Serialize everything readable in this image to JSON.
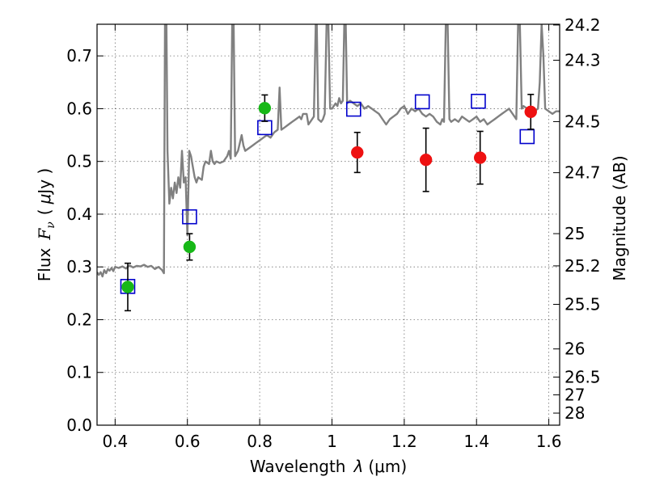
{
  "chart_data": {
    "type": "scatter",
    "xlabel_text": "Wavelength",
    "xlabel_symbol": "λ",
    "xlabel_unit": "(μm)",
    "ylabel_text": "Flux",
    "ylabel_symbol": "F",
    "ylabel_sub": "ν",
    "ylabel_unit_open": "(",
    "ylabel_unit_mu": "μ",
    "ylabel_unit_rest": "Jy )",
    "y2label": "Magnitude (AB)",
    "xlim": [
      0.35,
      1.63
    ],
    "ylim": [
      0.0,
      0.76
    ],
    "grid": true,
    "x_ticks": [
      0.4,
      0.6,
      0.8,
      1.0,
      1.2,
      1.4,
      1.6
    ],
    "x_tick_labels": [
      "0.4",
      "0.6",
      "0.8",
      "1",
      "1.2",
      "1.4",
      "1.6"
    ],
    "y_ticks": [
      0.0,
      0.1,
      0.2,
      0.3,
      0.4,
      0.5,
      0.6,
      0.7
    ],
    "y_tick_labels": [
      "0.0",
      "0.1",
      "0.2",
      "0.3",
      "0.4",
      "0.5",
      "0.6",
      "0.7"
    ],
    "mag_ticks": [
      24.2,
      24.3,
      24.5,
      24.7,
      25,
      25.2,
      25.5,
      26,
      26.5,
      27,
      28
    ],
    "mag_tick_labels": [
      "24.2",
      "24.3",
      "24.5",
      "24.7",
      "25",
      "25.2",
      "25.5",
      "26",
      "26.5",
      "27",
      "28"
    ],
    "colors": {
      "model": "#808080",
      "green": "#17b817",
      "red": "#ee1111",
      "square": "#0000cc",
      "errorbar": "#000000"
    },
    "series": [
      {
        "name": "model spectrum",
        "kind": "line",
        "points": [
          [
            0.35,
            0.29
          ],
          [
            0.355,
            0.285
          ],
          [
            0.36,
            0.29
          ],
          [
            0.365,
            0.282
          ],
          [
            0.37,
            0.294
          ],
          [
            0.375,
            0.288
          ],
          [
            0.38,
            0.296
          ],
          [
            0.385,
            0.293
          ],
          [
            0.39,
            0.298
          ],
          [
            0.395,
            0.292
          ],
          [
            0.4,
            0.3
          ],
          [
            0.41,
            0.298
          ],
          [
            0.42,
            0.301
          ],
          [
            0.43,
            0.297
          ],
          [
            0.44,
            0.303
          ],
          [
            0.45,
            0.299
          ],
          [
            0.46,
            0.302
          ],
          [
            0.47,
            0.301
          ],
          [
            0.48,
            0.304
          ],
          [
            0.49,
            0.3
          ],
          [
            0.5,
            0.302
          ],
          [
            0.51,
            0.296
          ],
          [
            0.52,
            0.3
          ],
          [
            0.53,
            0.294
          ],
          [
            0.535,
            0.288
          ],
          [
            0.538,
            0.76
          ],
          [
            0.542,
            0.76
          ],
          [
            0.545,
            0.52
          ],
          [
            0.55,
            0.42
          ],
          [
            0.555,
            0.45
          ],
          [
            0.56,
            0.43
          ],
          [
            0.565,
            0.46
          ],
          [
            0.57,
            0.44
          ],
          [
            0.575,
            0.47
          ],
          [
            0.58,
            0.45
          ],
          [
            0.585,
            0.52
          ],
          [
            0.59,
            0.46
          ],
          [
            0.595,
            0.47
          ],
          [
            0.6,
            0.36
          ],
          [
            0.605,
            0.52
          ],
          [
            0.61,
            0.51
          ],
          [
            0.615,
            0.49
          ],
          [
            0.62,
            0.47
          ],
          [
            0.625,
            0.46
          ],
          [
            0.63,
            0.47
          ],
          [
            0.64,
            0.465
          ],
          [
            0.645,
            0.49
          ],
          [
            0.65,
            0.5
          ],
          [
            0.66,
            0.495
          ],
          [
            0.665,
            0.52
          ],
          [
            0.67,
            0.5
          ],
          [
            0.675,
            0.495
          ],
          [
            0.68,
            0.5
          ],
          [
            0.69,
            0.497
          ],
          [
            0.7,
            0.5
          ],
          [
            0.71,
            0.51
          ],
          [
            0.715,
            0.52
          ],
          [
            0.72,
            0.505
          ],
          [
            0.724,
            0.76
          ],
          [
            0.728,
            0.76
          ],
          [
            0.732,
            0.51
          ],
          [
            0.74,
            0.52
          ],
          [
            0.75,
            0.55
          ],
          [
            0.755,
            0.53
          ],
          [
            0.76,
            0.52
          ],
          [
            0.77,
            0.525
          ],
          [
            0.78,
            0.53
          ],
          [
            0.79,
            0.535
          ],
          [
            0.8,
            0.54
          ],
          [
            0.81,
            0.545
          ],
          [
            0.82,
            0.55
          ],
          [
            0.83,
            0.545
          ],
          [
            0.84,
            0.555
          ],
          [
            0.85,
            0.56
          ],
          [
            0.855,
            0.64
          ],
          [
            0.86,
            0.56
          ],
          [
            0.87,
            0.565
          ],
          [
            0.88,
            0.57
          ],
          [
            0.89,
            0.575
          ],
          [
            0.9,
            0.58
          ],
          [
            0.91,
            0.585
          ],
          [
            0.915,
            0.58
          ],
          [
            0.92,
            0.59
          ],
          [
            0.93,
            0.59
          ],
          [
            0.935,
            0.57
          ],
          [
            0.94,
            0.575
          ],
          [
            0.95,
            0.585
          ],
          [
            0.955,
            0.76
          ],
          [
            0.958,
            0.76
          ],
          [
            0.962,
            0.58
          ],
          [
            0.97,
            0.575
          ],
          [
            0.975,
            0.58
          ],
          [
            0.98,
            0.59
          ],
          [
            0.985,
            0.76
          ],
          [
            0.99,
            0.76
          ],
          [
            0.995,
            0.6
          ],
          [
            1.0,
            0.6
          ],
          [
            1.01,
            0.61
          ],
          [
            1.015,
            0.605
          ],
          [
            1.02,
            0.62
          ],
          [
            1.025,
            0.61
          ],
          [
            1.03,
            0.615
          ],
          [
            1.034,
            0.76
          ],
          [
            1.038,
            0.76
          ],
          [
            1.042,
            0.61
          ],
          [
            1.05,
            0.615
          ],
          [
            1.06,
            0.61
          ],
          [
            1.07,
            0.605
          ],
          [
            1.08,
            0.61
          ],
          [
            1.09,
            0.6
          ],
          [
            1.1,
            0.605
          ],
          [
            1.11,
            0.6
          ],
          [
            1.12,
            0.595
          ],
          [
            1.13,
            0.59
          ],
          [
            1.14,
            0.58
          ],
          [
            1.15,
            0.57
          ],
          [
            1.16,
            0.58
          ],
          [
            1.17,
            0.585
          ],
          [
            1.18,
            0.59
          ],
          [
            1.19,
            0.6
          ],
          [
            1.2,
            0.605
          ],
          [
            1.21,
            0.59
          ],
          [
            1.22,
            0.6
          ],
          [
            1.23,
            0.595
          ],
          [
            1.24,
            0.6
          ],
          [
            1.25,
            0.59
          ],
          [
            1.26,
            0.585
          ],
          [
            1.27,
            0.59
          ],
          [
            1.28,
            0.585
          ],
          [
            1.29,
            0.575
          ],
          [
            1.3,
            0.57
          ],
          [
            1.305,
            0.58
          ],
          [
            1.31,
            0.575
          ],
          [
            1.315,
            0.76
          ],
          [
            1.32,
            0.76
          ],
          [
            1.325,
            0.58
          ],
          [
            1.33,
            0.575
          ],
          [
            1.34,
            0.58
          ],
          [
            1.35,
            0.575
          ],
          [
            1.36,
            0.585
          ],
          [
            1.37,
            0.58
          ],
          [
            1.38,
            0.575
          ],
          [
            1.39,
            0.58
          ],
          [
            1.4,
            0.585
          ],
          [
            1.41,
            0.575
          ],
          [
            1.42,
            0.58
          ],
          [
            1.43,
            0.57
          ],
          [
            1.44,
            0.575
          ],
          [
            1.45,
            0.58
          ],
          [
            1.46,
            0.585
          ],
          [
            1.47,
            0.59
          ],
          [
            1.48,
            0.595
          ],
          [
            1.49,
            0.6
          ],
          [
            1.5,
            0.59
          ],
          [
            1.51,
            0.58
          ],
          [
            1.515,
            0.76
          ],
          [
            1.52,
            0.76
          ],
          [
            1.525,
            0.6
          ],
          [
            1.53,
            0.605
          ],
          [
            1.54,
            0.6
          ],
          [
            1.55,
            0.59
          ],
          [
            1.56,
            0.595
          ],
          [
            1.57,
            0.6
          ],
          [
            1.575,
            0.65
          ],
          [
            1.58,
            0.76
          ],
          [
            1.585,
            0.7
          ],
          [
            1.59,
            0.6
          ],
          [
            1.6,
            0.595
          ],
          [
            1.61,
            0.59
          ],
          [
            1.62,
            0.595
          ],
          [
            1.63,
            0.595
          ]
        ]
      },
      {
        "name": "model band fluxes",
        "kind": "open-square",
        "x": [
          0.435,
          0.606,
          0.814,
          1.06,
          1.25,
          1.405,
          1.54
        ],
        "y": [
          0.263,
          0.395,
          0.564,
          0.599,
          0.613,
          0.614,
          0.547
        ]
      },
      {
        "name": "observed (green)",
        "kind": "circle",
        "x": [
          0.435,
          0.606,
          0.814
        ],
        "y": [
          0.262,
          0.338,
          0.601
        ],
        "yerr": [
          0.045,
          0.025,
          0.025
        ]
      },
      {
        "name": "observed (red)",
        "kind": "circle",
        "x": [
          1.07,
          1.26,
          1.41,
          1.55
        ],
        "y": [
          0.517,
          0.503,
          0.507,
          0.594
        ],
        "yerr": [
          0.038,
          0.06,
          0.05,
          0.033
        ]
      }
    ]
  }
}
